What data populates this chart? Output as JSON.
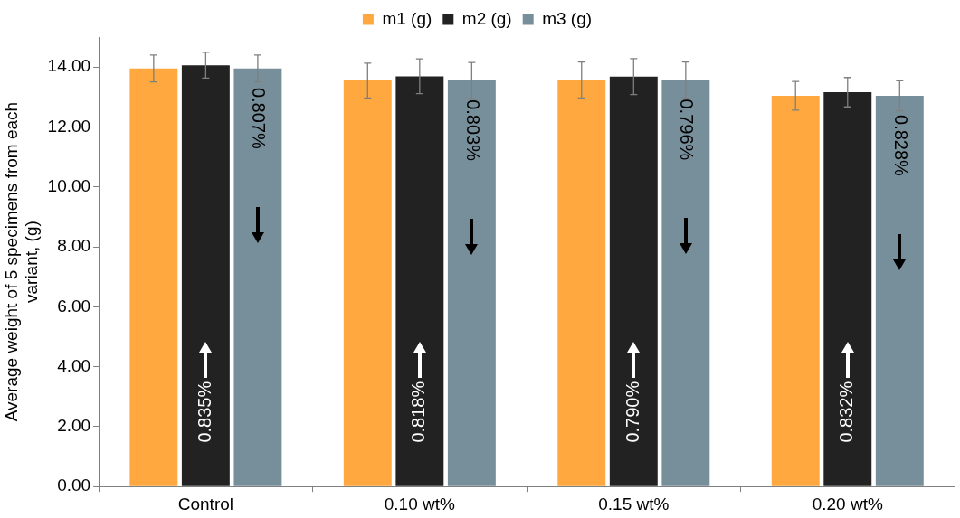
{
  "chart_data": {
    "type": "bar",
    "categories": [
      "Control",
      "0.10 wt%",
      "0.15 wt%",
      "0.20 wt%"
    ],
    "ylabel": "Average weight of 5 specimens from each variant, (g)",
    "ylim": [
      0,
      15
    ],
    "yticks": [
      {
        "value": 0,
        "label": "0.00"
      },
      {
        "value": 2,
        "label": "2.00"
      },
      {
        "value": 4,
        "label": "4.00"
      },
      {
        "value": 6,
        "label": "6.00"
      },
      {
        "value": 8,
        "label": "8.00"
      },
      {
        "value": 10,
        "label": "10.00"
      },
      {
        "value": 12,
        "label": "12.00"
      },
      {
        "value": 14,
        "label": "14.00"
      }
    ],
    "series": [
      {
        "name": "m1 (g)",
        "color": "#ffa83f",
        "values": [
          13.95,
          13.55,
          13.57,
          13.04
        ],
        "errors": [
          0.45,
          0.58,
          0.6,
          0.48
        ]
      },
      {
        "name": "m2 (g)",
        "color": "#222222",
        "values": [
          14.06,
          13.69,
          13.68,
          13.16
        ],
        "errors": [
          0.43,
          0.58,
          0.6,
          0.49
        ]
      },
      {
        "name": "m3 (g)",
        "color": "#778f9b",
        "values": [
          13.95,
          13.55,
          13.57,
          13.04
        ],
        "errors": [
          0.45,
          0.6,
          0.6,
          0.5
        ]
      }
    ],
    "annotations": [
      "0.835%",
      "0.807%",
      "0.818%",
      "0.803%",
      "0.790%",
      "0.796%",
      "0.832%",
      "0.828%"
    ],
    "grid": false,
    "legend": "top"
  }
}
